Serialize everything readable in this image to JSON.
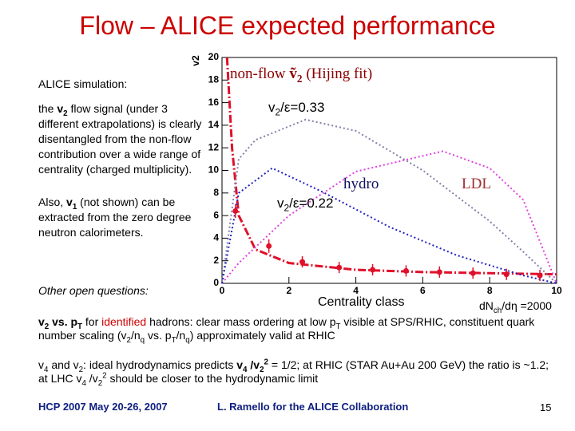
{
  "title": "Flow – ALICE expected performance",
  "left_text": [
    [
      [
        "ALICE simulation:",
        ""
      ]
    ],
    [
      [
        "the ",
        ""
      ],
      [
        "v",
        "b"
      ],
      [
        "2",
        "bsub"
      ],
      [
        " flow signal (under 3 different extrapolations) is clearly disentangled from the non-flow contribution over a wide range of centrality (charged multiplicity).",
        ""
      ]
    ],
    [
      [
        "Also, ",
        ""
      ],
      [
        "v",
        "b"
      ],
      [
        "1",
        "bsub"
      ],
      [
        " (not shown) can be extracted from the zero degree neutron calorimeters.",
        ""
      ]
    ]
  ],
  "other_questions": [
    [
      "Other open questions:",
      "i"
    ]
  ],
  "bullets": [
    [
      [
        "v",
        "b"
      ],
      [
        "2",
        "bsub"
      ],
      [
        " vs. p",
        "b"
      ],
      [
        "T",
        "bsub"
      ],
      [
        " for ",
        ""
      ],
      [
        "identified",
        "r"
      ],
      [
        " hadrons: clear mass ordering at low p",
        ""
      ],
      [
        "T",
        "sub"
      ],
      [
        " visible at SPS/RHIC, constituent quark number scaling (v",
        ""
      ],
      [
        "2",
        "sub"
      ],
      [
        "/n",
        ""
      ],
      [
        "q",
        "sub"
      ],
      [
        " vs. p",
        ""
      ],
      [
        "T",
        "sub"
      ],
      [
        "/n",
        ""
      ],
      [
        "q",
        "sub"
      ],
      [
        ") approximately valid at RHIC",
        ""
      ]
    ],
    [
      [
        "v",
        ""
      ],
      [
        "4",
        "sub"
      ],
      [
        " and v",
        ""
      ],
      [
        "2",
        "sub"
      ],
      [
        ": ideal hydrodynamics predicts ",
        ""
      ],
      [
        "v",
        "b"
      ],
      [
        "4",
        "bsub"
      ],
      [
        " /v",
        "b"
      ],
      [
        "2",
        "bsub"
      ],
      [
        "2",
        "bsup"
      ],
      [
        " = 1/2; at RHIC (STAR Au+Au 200 GeV) the ratio is ~1.2; at LHC v",
        ""
      ],
      [
        "4",
        "sub"
      ],
      [
        " /v",
        ""
      ],
      [
        "2",
        "sub"
      ],
      [
        "2",
        "sup"
      ],
      [
        " should be closer to the hydrodynamic limit",
        ""
      ]
    ]
  ],
  "footer": {
    "left": "HCP 2007 May 20-26, 2007",
    "center": "L. Ramello for the ALICE Collaboration",
    "page": "15"
  },
  "chart_data": {
    "type": "line",
    "y_label": "v2",
    "x_label": "Centrality class",
    "annotations": {
      "nonflow": [
        [
          "non-flow ",
          ""
        ],
        [
          "ṽ",
          "b"
        ],
        [
          "2",
          "bsub"
        ],
        [
          " (Hijing fit)",
          ""
        ]
      ],
      "ratio_high": [
        [
          "v",
          ""
        ],
        [
          "2",
          "sub"
        ],
        [
          "/ε=0.33",
          ""
        ]
      ],
      "ratio_low": [
        [
          "v",
          ""
        ],
        [
          "2",
          "sub"
        ],
        [
          "/ε=0.22",
          ""
        ]
      ],
      "hydro": [
        [
          "hydro",
          ""
        ]
      ],
      "ldl": [
        [
          "LDL",
          ""
        ]
      ],
      "multiplicity": [
        [
          "dN",
          ""
        ],
        [
          "ch",
          "sub"
        ],
        [
          "/dη =2000",
          ""
        ]
      ]
    },
    "xlim": [
      0,
      10
    ],
    "xticks": [
      0,
      2,
      4,
      6,
      8,
      10
    ],
    "ylim": [
      0,
      20
    ],
    "yticks": [
      0,
      2,
      4,
      6,
      8,
      10,
      12,
      14,
      16,
      18,
      20
    ],
    "series": [
      {
        "color": "#e0102a",
        "x": [
          0.15,
          0.3,
          0.5,
          1,
          2,
          4,
          6,
          8,
          10
        ],
        "values": [
          20,
          12,
          6,
          3,
          1.8,
          1.2,
          1,
          0.9,
          0.8
        ]
      },
      {
        "color": "#8080a8",
        "x": [
          0,
          0.5,
          1,
          2.5,
          4,
          6,
          8,
          9,
          10
        ],
        "values": [
          0,
          11,
          12.7,
          14.5,
          13.5,
          10,
          5.5,
          2.8,
          0
        ]
      },
      {
        "color": "#e040e0",
        "x": [
          0,
          0.5,
          2,
          4,
          6.6,
          8,
          9,
          10
        ],
        "values": [
          0,
          1.8,
          6,
          9.9,
          11.7,
          10.2,
          7.4,
          0
        ]
      },
      {
        "color": "#2020c0",
        "x": [
          0,
          0.5,
          1.5,
          3,
          5,
          7,
          9,
          10
        ],
        "values": [
          0,
          8,
          10.2,
          8.1,
          5,
          2.5,
          0.7,
          0
        ]
      }
    ],
    "points": {
      "color": "#e0102a",
      "x": [
        0.4,
        1.4,
        2.4,
        3.5,
        4.5,
        5.5,
        6.5,
        7.5,
        8.5,
        9.5
      ],
      "values": [
        6.4,
        3.3,
        1.9,
        1.4,
        1.2,
        1.1,
        1,
        0.9,
        0.8,
        0.7
      ],
      "errors": [
        0.6,
        0.6,
        0.5,
        0.5,
        0.5,
        0.5,
        0.5,
        0.5,
        0.5,
        0.5
      ]
    }
  }
}
